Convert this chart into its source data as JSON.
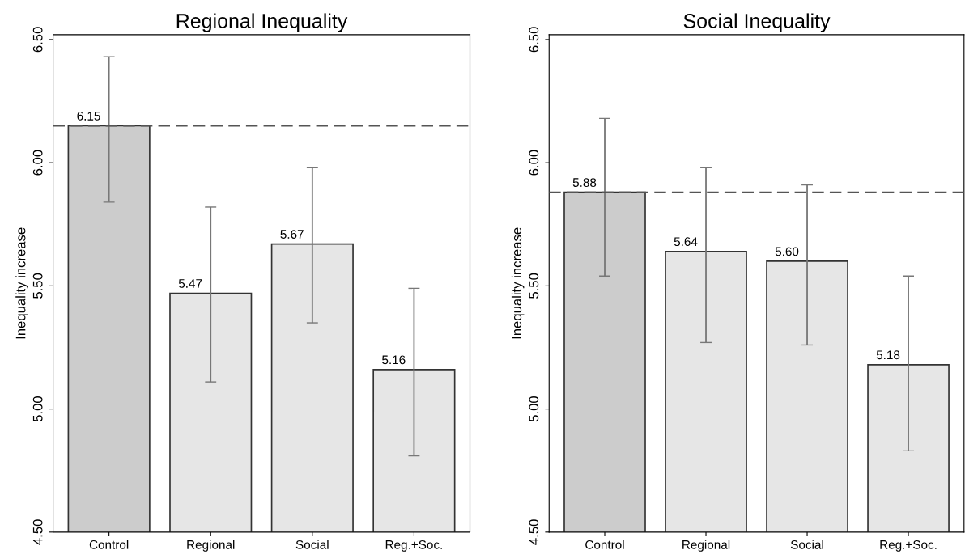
{
  "chart_data": [
    {
      "type": "bar",
      "title": "Regional Inequality",
      "ylabel": "Inequality increase",
      "categories": [
        "Control",
        "Regional",
        "Social",
        "Reg.+Soc."
      ],
      "values": [
        6.15,
        5.47,
        5.67,
        5.16
      ],
      "colors": [
        "#cccccc",
        "#e6e6e6",
        "#e6e6e6",
        "#e6e6e6"
      ],
      "errors": [
        [
          5.84,
          6.43
        ],
        [
          5.11,
          5.82
        ],
        [
          5.35,
          5.98
        ],
        [
          4.81,
          5.49
        ]
      ],
      "value_labels": [
        "6.15",
        "5.47",
        "5.67",
        "5.16"
      ],
      "ylim": [
        4.5,
        6.52
      ],
      "yticks": [
        {
          "value": 4.5,
          "label": "4.50"
        },
        {
          "value": 5.0,
          "label": "5.00"
        },
        {
          "value": 5.5,
          "label": "5.50"
        },
        {
          "value": 6.0,
          "label": "6.00"
        },
        {
          "value": 6.5,
          "label": "6.50"
        }
      ],
      "ref_lines": [
        {
          "axis": "y",
          "value": 6.15,
          "color": "#555555",
          "line_style": "dashed"
        }
      ],
      "grid": false,
      "legend": false
    },
    {
      "type": "bar",
      "title": "Social Inequality",
      "ylabel": "Inequality increase",
      "categories": [
        "Control",
        "Regional",
        "Social",
        "Reg.+Soc."
      ],
      "values": [
        5.88,
        5.64,
        5.6,
        5.18
      ],
      "colors": [
        "#cccccc",
        "#e6e6e6",
        "#e6e6e6",
        "#e6e6e6"
      ],
      "errors": [
        [
          5.54,
          6.18
        ],
        [
          5.27,
          5.98
        ],
        [
          5.26,
          5.91
        ],
        [
          4.83,
          5.54
        ]
      ],
      "value_labels": [
        "5.88",
        "5.64",
        "5.60",
        "5.18"
      ],
      "ylim": [
        4.5,
        6.52
      ],
      "yticks": [
        {
          "value": 4.5,
          "label": "4.50"
        },
        {
          "value": 5.0,
          "label": "5.00"
        },
        {
          "value": 5.5,
          "label": "5.50"
        },
        {
          "value": 6.0,
          "label": "6.00"
        },
        {
          "value": 6.5,
          "label": "6.50"
        }
      ],
      "ref_lines": [
        {
          "axis": "y",
          "value": 5.88,
          "color": "#555555",
          "line_style": "dashed"
        }
      ],
      "grid": false,
      "legend": false
    }
  ]
}
